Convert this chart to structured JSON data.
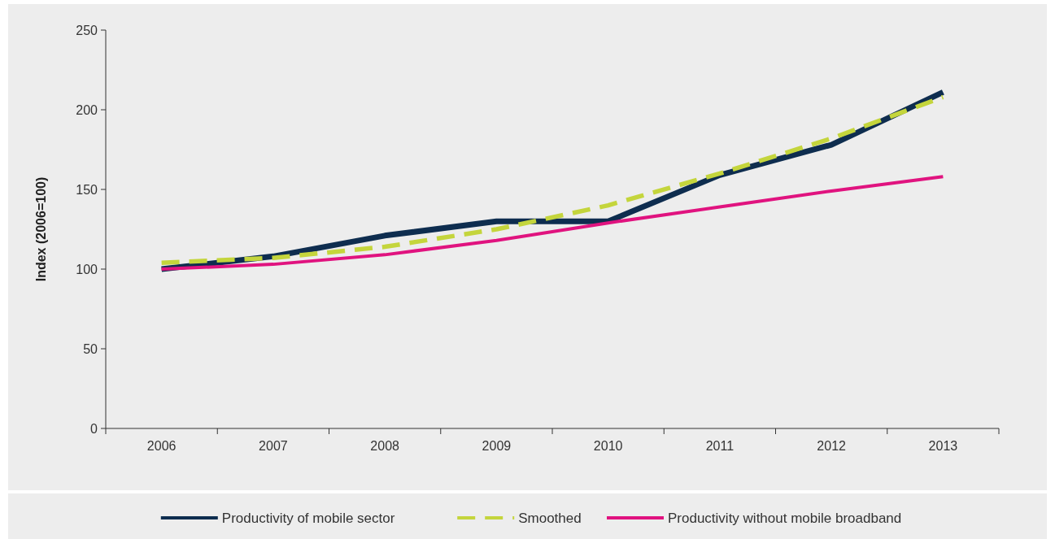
{
  "chart_data": {
    "type": "line",
    "ylabel": "Index (2006=100)",
    "categories": [
      "2006",
      "2007",
      "2008",
      "2009",
      "2010",
      "2011",
      "2012",
      "2013"
    ],
    "series": [
      {
        "name": "Productivity of mobile sector",
        "color": "#0e2d4f",
        "values": [
          100,
          108,
          121,
          130,
          130,
          159,
          178,
          211
        ]
      },
      {
        "name": "Smoothed",
        "color": "#c4d53c",
        "line_style": "dashed",
        "values": [
          104,
          107,
          114,
          125,
          140,
          160,
          182,
          208
        ]
      },
      {
        "name": "Productivity without mobile broadband",
        "color": "#e0137f",
        "values": [
          100,
          103,
          109,
          118,
          129,
          139,
          149,
          158
        ]
      }
    ],
    "ylim": [
      0,
      250
    ],
    "yticks": [
      0,
      50,
      100,
      150,
      200,
      250
    ],
    "grid": false,
    "legend": "bottom",
    "marker": "none",
    "line_style": "solid"
  }
}
